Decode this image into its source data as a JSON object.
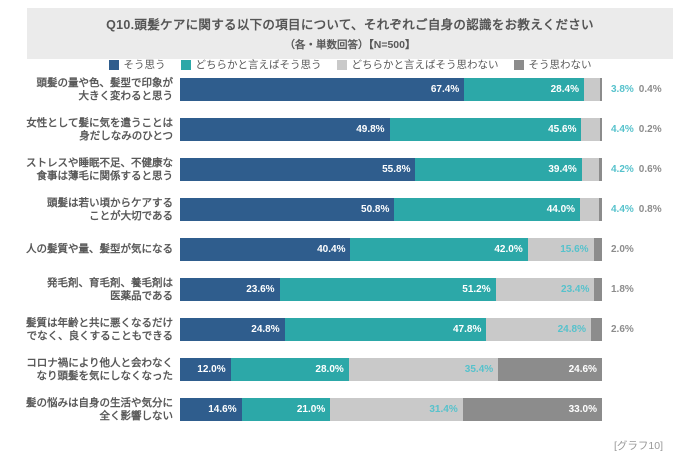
{
  "header": {
    "title": "Q10.頭髪ケアに関する以下の項目について、それぞれご自身の認識をお教えください",
    "subtitle": "（各・単数回答）【N=500】"
  },
  "caption": "[グラフ10]",
  "colors": {
    "agree": "#2F5D8D",
    "somewhat_agree": "#2CA8A8",
    "somewhat_disagree": "#C9C9C9",
    "disagree": "#8C8C8C",
    "label_inside": "#FFFFFF",
    "label_teal": "#56C2CC",
    "label_gray": "#8C8C8C",
    "text": "#595959",
    "banner_bg": "#EBEBEB"
  },
  "chart_data": {
    "type": "bar",
    "orientation": "horizontal",
    "stacked": true,
    "unit": "%",
    "xlim": [
      0,
      100
    ],
    "legend_position": "top",
    "grid": false,
    "categories": [
      "頭髪の量や色、髪型で印象が\n大きく変わると思う",
      "女性として髪に気を遣うことは\n身だしなみのひとつ",
      "ストレスや睡眠不足、不健康な\n食事は薄毛に関係すると思う",
      "頭髪は若い頃からケアする\nことが大切である",
      "人の髪質や量、髪型が気になる",
      "発毛剤、育毛剤、養毛剤は\n医薬品である",
      "髪質は年齢と共に悪くなるだけ\nでなく、良くすることもできる",
      "コロナ禍により他人と会わなく\nなり頭髪を気にしなくなった",
      "髪の悩みは自身の生活や気分に\n全く影響しない"
    ],
    "series": [
      {
        "name": "そう思う",
        "color": "#2F5D8D",
        "values": [
          67.4,
          49.8,
          55.8,
          50.8,
          40.4,
          23.6,
          24.8,
          12.0,
          14.6
        ]
      },
      {
        "name": "どちらかと言えばそう思う",
        "color": "#2CA8A8",
        "values": [
          28.4,
          45.6,
          39.4,
          44.0,
          42.0,
          51.2,
          47.8,
          28.0,
          21.0
        ]
      },
      {
        "name": "どちらかと言えばそう思わない",
        "color": "#C9C9C9",
        "values": [
          3.8,
          4.4,
          4.2,
          4.4,
          15.6,
          23.4,
          24.8,
          35.4,
          31.4
        ]
      },
      {
        "name": "そう思わない",
        "color": "#8C8C8C",
        "values": [
          0.4,
          0.2,
          0.6,
          0.8,
          2.0,
          1.8,
          2.6,
          24.6,
          33.0
        ]
      }
    ]
  }
}
